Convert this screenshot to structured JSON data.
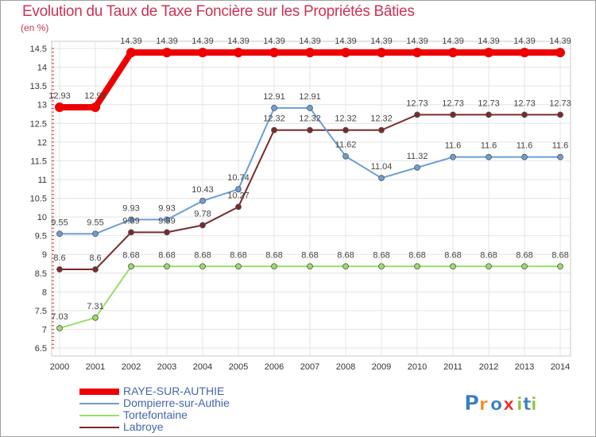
{
  "chart_data": {
    "type": "line",
    "title": "Evolution du Taux de Taxe Foncière sur les Propriétés Bâties",
    "ylabel": "(en %)",
    "xlabel": "",
    "x": [
      "2000",
      "2001",
      "2002",
      "2003",
      "2004",
      "2005",
      "2006",
      "2007",
      "2008",
      "2009",
      "2010",
      "2011",
      "2012",
      "2013",
      "2014"
    ],
    "ylim": [
      6.5,
      14.5
    ],
    "yticks": [
      "6.5",
      "7",
      "7.5",
      "8",
      "8.5",
      "9",
      "9.5",
      "10",
      "10.5",
      "11",
      "11.5",
      "12",
      "12.5",
      "13",
      "13.5",
      "14",
      "14.5"
    ],
    "series": [
      {
        "name": "RAYE-SUR-AUTHIE",
        "color": "#ee0000",
        "values": [
          12.93,
          12.93,
          14.39,
          14.39,
          14.39,
          14.39,
          14.39,
          14.39,
          14.39,
          14.39,
          14.39,
          14.39,
          14.39,
          14.39,
          14.39
        ],
        "labels": [
          "12.93",
          "12.93",
          "14.39",
          "14.39",
          "14.39",
          "14.39",
          "14.39",
          "14.39",
          "14.39",
          "14.39",
          "14.39",
          "14.39",
          "14.39",
          "14.39",
          "14.39"
        ]
      },
      {
        "name": "Dompierre-sur-Authie",
        "color": "#6b9fd4",
        "values": [
          9.55,
          9.55,
          9.93,
          9.93,
          10.43,
          10.74,
          12.91,
          12.91,
          11.62,
          11.04,
          11.32,
          11.6,
          11.6,
          11.6,
          11.6
        ],
        "labels": [
          "9.55",
          "9.55",
          "9.93",
          "9.93",
          "10.43",
          "10.74",
          "12.91",
          "12.91",
          "11.62",
          "11.04",
          "11.32",
          "11.6",
          "11.6",
          "11.6",
          "11.6"
        ]
      },
      {
        "name": "Tortefontaine",
        "color": "#99dd66",
        "values": [
          7.03,
          7.31,
          8.68,
          8.68,
          8.68,
          8.68,
          8.68,
          8.68,
          8.68,
          8.68,
          8.68,
          8.68,
          8.68,
          8.68,
          8.68
        ],
        "labels": [
          "7.03",
          "7.31",
          "8.68",
          "8.68",
          "8.68",
          "8.68",
          "8.68",
          "8.68",
          "8.68",
          "8.68",
          "8.68",
          "8.68",
          "8.68",
          "8.68",
          "8.68"
        ]
      },
      {
        "name": "Labroye",
        "color": "#7a2a2a",
        "values": [
          8.6,
          8.6,
          9.59,
          9.59,
          9.78,
          10.27,
          12.32,
          12.32,
          12.32,
          12.32,
          12.73,
          12.73,
          12.73,
          12.73,
          12.73
        ],
        "labels": [
          "8.6",
          "8.6",
          "9.59",
          "9.59",
          "9.78",
          "10.27",
          "12.32",
          "12.32",
          "12.32",
          "12.32",
          "12.73",
          "12.73",
          "12.73",
          "12.73",
          "12.73"
        ]
      }
    ]
  },
  "logo": {
    "letters": [
      "P",
      "r",
      "o",
      "x",
      "i",
      "t",
      "i"
    ],
    "colors": [
      "#3a7fc1",
      "#f08a1c",
      "#3a7fc1",
      "#e8352a",
      "#8cc63f",
      "#3a7fc1",
      "#8cc63f"
    ]
  }
}
